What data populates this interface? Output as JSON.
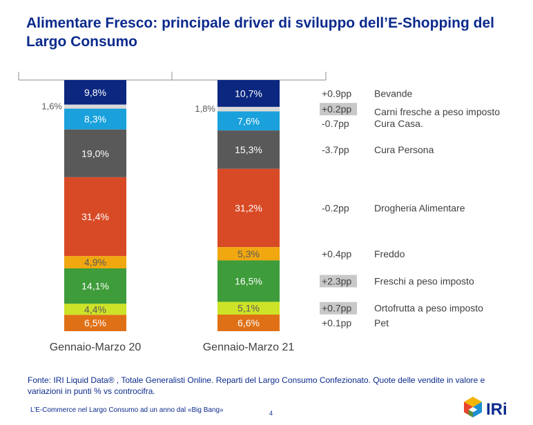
{
  "header": {
    "title": "Alimentare Fresco: principale driver di sviluppo dell’E-Shopping del Largo Consumo"
  },
  "chart_data": {
    "type": "stacked-bar-100",
    "categories": [
      "Gennaio-Marzo 20",
      "Gennaio-Marzo 21"
    ],
    "series": [
      {
        "name": "Bevande",
        "color": "#0c2780",
        "values": [
          9.8,
          10.7
        ],
        "labels": [
          "9,8%",
          "10,7%"
        ],
        "change": "+0.9pp",
        "change_highlight": false
      },
      {
        "name": "Carni fresche a peso imposto",
        "color": "#d9d9d9",
        "values": [
          1.6,
          1.8
        ],
        "labels": [
          "1,6%",
          "1,8%"
        ],
        "change": "+0.2pp",
        "change_highlight": true
      },
      {
        "name": "Cura Casa.",
        "color": "#1aa1dc",
        "values": [
          8.3,
          7.6
        ],
        "labels": [
          "8,3%",
          "7,6%"
        ],
        "change": "-0.7pp",
        "change_highlight": false
      },
      {
        "name": "Cura Persona",
        "color": "#595959",
        "values": [
          19.0,
          15.3
        ],
        "labels": [
          "19,0%",
          "15,3%"
        ],
        "change": "-3.7pp",
        "change_highlight": false
      },
      {
        "name": "Drogheria Alimentare",
        "color": "#d84a26",
        "values": [
          31.4,
          31.2
        ],
        "labels": [
          "31,4%",
          "31,2%"
        ],
        "change": "-0.2pp",
        "change_highlight": false
      },
      {
        "name": "Freddo",
        "color": "#f0a710",
        "values": [
          4.9,
          5.3
        ],
        "labels": [
          "4,9%",
          "5,3%"
        ],
        "change": "+0.4pp",
        "change_highlight": false
      },
      {
        "name": "Freschi a peso imposto",
        "color": "#3e9c3a",
        "values": [
          14.1,
          16.5
        ],
        "labels": [
          "14,1%",
          "16,5%"
        ],
        "change": "+2.3pp",
        "change_highlight": true
      },
      {
        "name": "Ortofrutta a peso imposto",
        "color": "#cde327",
        "values": [
          4.4,
          5.1
        ],
        "labels": [
          "4,4%",
          "5,1%"
        ],
        "change": "+0.7pp",
        "change_highlight": true
      },
      {
        "name": "Pet",
        "color": "#e07016",
        "values": [
          6.5,
          6.6
        ],
        "labels": [
          "6,5%",
          "6,6%"
        ],
        "change": "+0.1pp",
        "change_highlight": false
      }
    ]
  },
  "source": "Fonte: IRI Liquid Data® , Totale Generalisti Online. Reparti del Largo Consumo Confezionato. Quote delle vendite in valore e variazioni in punti % vs controcifra.",
  "footer": {
    "text": "L’E-Commerce nel Largo Consumo ad un anno dal «Big Bang»",
    "page": "4"
  },
  "logo": {
    "text": "IRi"
  }
}
